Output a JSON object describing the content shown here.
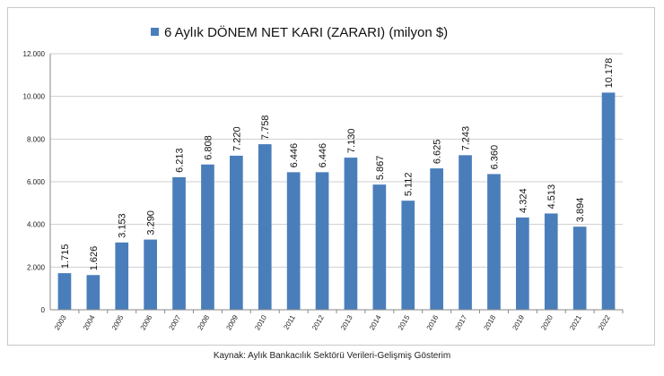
{
  "chart_data": {
    "type": "bar",
    "title": "6 Aylık DÖNEM NET KARI (ZARARI) (milyon $)",
    "xlabel": "",
    "ylabel": "",
    "legend_position": "top",
    "grid": true,
    "ylim": [
      0,
      12000
    ],
    "yticks": [
      "0",
      "2.000",
      "4.000",
      "6.000",
      "8.000",
      "10.000",
      "12.000"
    ],
    "categories": [
      "2003",
      "2004",
      "2005",
      "2006",
      "2007",
      "2008",
      "2009",
      "2010",
      "2011",
      "2012",
      "2013",
      "2014",
      "2015",
      "2016",
      "2017",
      "2018",
      "2019",
      "2020",
      "2021",
      "2022"
    ],
    "series": [
      {
        "name": "6 Aylık DÖNEM NET KARI (ZARARI) (milyon $)",
        "color": "#4a7ebb",
        "values": [
          1715,
          1626,
          3153,
          3290,
          6213,
          6808,
          7220,
          7758,
          6446,
          6446,
          7130,
          5867,
          5112,
          6625,
          7243,
          6360,
          4324,
          4513,
          3894,
          10178
        ],
        "labels": [
          "1.715",
          "1.626",
          "3.153",
          "3.290",
          "6.213",
          "6.808",
          "7.220",
          "7.758",
          "6.446",
          "6.446",
          "7.130",
          "5.867",
          "5.112",
          "6.625",
          "7.243",
          "6.360",
          "4.324",
          "4.513",
          "3.894",
          "10.178"
        ]
      }
    ]
  },
  "source": "Kaynak: Aylık Bankacılık Sektörü Verileri-Gelişmiş Gösterim"
}
